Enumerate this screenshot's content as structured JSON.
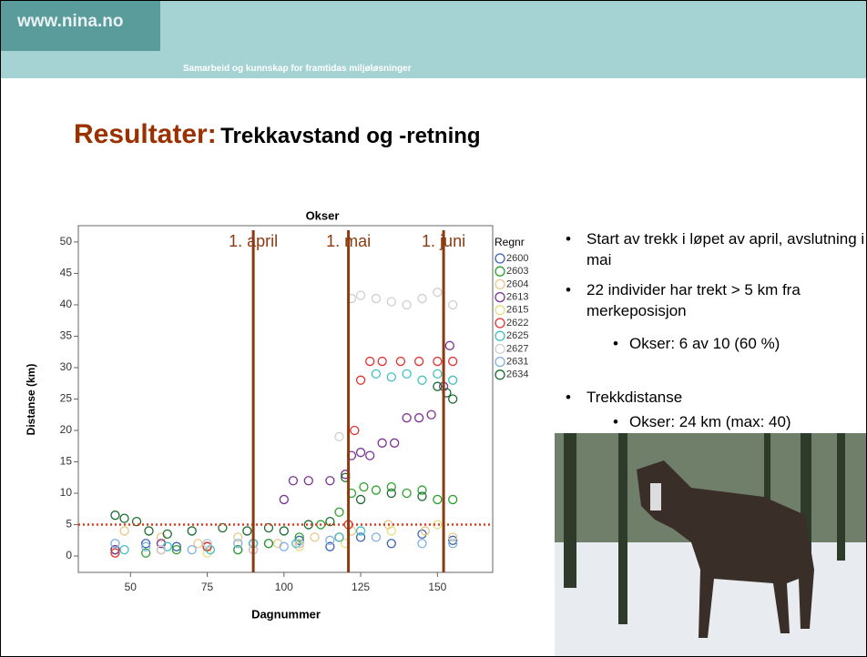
{
  "header": {
    "site": "www.nina.no",
    "tagline": "Samarbeid og kunnskap for framtidas miljøløsninger"
  },
  "title": {
    "lead": "Resultater:",
    "rest": "Trekkavstand og -retning"
  },
  "bullets": [
    {
      "text": "Start av trekk i løpet av april, avslutning i mai",
      "level": 1
    },
    {
      "text": "22 individer har trekt > 5 km fra merkeposisjon",
      "level": 1
    },
    {
      "text": "Okser: 6 av 10 (60 %)",
      "level": 2
    },
    {
      "text": "Trekkdistanse",
      "level": 1
    },
    {
      "text": "Okser: 24 km (max: 40)",
      "level": 2
    }
  ],
  "chart_data": {
    "type": "scatter",
    "title": "Okser",
    "x_label": "Dagnummer",
    "y_label": "Distanse (km)",
    "legend_title": "Regnr",
    "xlim": [
      33,
      168
    ],
    "ylim": [
      -2.6,
      52.6
    ],
    "xticks": [
      50,
      75,
      100,
      125,
      150
    ],
    "yticks": [
      0,
      5,
      10,
      15,
      20,
      25,
      30,
      35,
      40,
      45,
      50
    ],
    "grid": false,
    "annotations": [
      {
        "label": "1. april",
        "x": 90,
        "color": "#8b3a10"
      },
      {
        "label": "1. mai",
        "x": 121,
        "color": "#8b3a10"
      },
      {
        "label": "1. juni",
        "x": 152,
        "color": "#8b3a10"
      }
    ],
    "reference_line": {
      "y": 5,
      "color": "#e03a1a",
      "dotted": true
    },
    "series": [
      {
        "name": "2600",
        "color": "#3b5fb5",
        "x": [
          45,
          55,
          65,
          75,
          85,
          95,
          105,
          115,
          125,
          135,
          145,
          155
        ],
        "y": [
          1,
          2,
          1.5,
          2,
          1,
          2,
          2.5,
          1.5,
          3,
          2,
          3.5,
          2.5
        ]
      },
      {
        "name": "2603",
        "color": "#2ca02c",
        "x": [
          45,
          55,
          65,
          75,
          85,
          95,
          105,
          112,
          118,
          122,
          126,
          130,
          135,
          140,
          145,
          150,
          155
        ],
        "y": [
          1,
          0.5,
          1,
          1.5,
          1,
          2,
          3,
          5,
          7,
          10,
          11,
          10.5,
          11,
          10,
          10.5,
          9,
          9
        ]
      },
      {
        "name": "2604",
        "color": "#e8c88a",
        "x": [
          48,
          60,
          72,
          85,
          98,
          110,
          122,
          134,
          146,
          155
        ],
        "y": [
          4,
          3,
          2,
          3,
          2,
          3,
          4,
          5,
          4,
          3
        ]
      },
      {
        "name": "2613",
        "color": "#7b3294",
        "x": [
          45,
          60,
          75,
          90,
          100,
          103,
          108,
          115,
          120,
          122,
          125,
          128,
          132,
          136,
          140,
          144,
          148,
          152,
          154
        ],
        "y": [
          1,
          2,
          1.5,
          2,
          9,
          12,
          12,
          12,
          13,
          16,
          16.5,
          16,
          18,
          18,
          22,
          22,
          22.5,
          27,
          33.5
        ]
      },
      {
        "name": "2615",
        "color": "#e6df80",
        "x": [
          45,
          60,
          75,
          90,
          105,
          120,
          135,
          150
        ],
        "y": [
          0.5,
          1,
          0.5,
          1,
          1.5,
          2,
          4,
          5
        ]
      },
      {
        "name": "2622",
        "color": "#e03030",
        "x": [
          45,
          60,
          75,
          90,
          105,
          118,
          121,
          123,
          125,
          128,
          132,
          138,
          144,
          150,
          155
        ],
        "y": [
          0.5,
          1,
          1.5,
          1,
          2,
          3,
          5,
          20,
          28,
          31,
          31,
          31,
          31,
          31,
          31
        ]
      },
      {
        "name": "2625",
        "color": "#40c0c0",
        "x": [
          48,
          62,
          76,
          90,
          104,
          118,
          125,
          130,
          135,
          140,
          145,
          150,
          155
        ],
        "y": [
          1,
          1.5,
          1,
          2,
          2,
          3,
          4,
          29,
          28.5,
          29,
          28,
          29,
          28
        ]
      },
      {
        "name": "2627",
        "color": "#cfcfcf",
        "x": [
          45,
          60,
          75,
          90,
          105,
          118,
          122,
          125,
          130,
          135,
          140,
          145,
          150,
          155
        ],
        "y": [
          2,
          1,
          2,
          1,
          2,
          19,
          41,
          41.5,
          41,
          40.5,
          40,
          41,
          42,
          40
        ]
      },
      {
        "name": "2631",
        "color": "#80b0e0",
        "x": [
          45,
          55,
          70,
          85,
          100,
          115,
          130,
          145,
          155
        ],
        "y": [
          2,
          1.5,
          1,
          2,
          1.5,
          2.5,
          3,
          2,
          2
        ]
      },
      {
        "name": "2634",
        "color": "#1a6b30",
        "x": [
          45,
          48,
          52,
          56,
          62,
          70,
          80,
          88,
          95,
          100,
          108,
          115,
          120,
          125,
          135,
          145,
          150,
          153,
          155
        ],
        "y": [
          6.5,
          6,
          5.5,
          4,
          3.5,
          4,
          4.5,
          4,
          4.5,
          4,
          5,
          5.5,
          12.5,
          9,
          10,
          9.5,
          27,
          26,
          25
        ]
      }
    ]
  }
}
